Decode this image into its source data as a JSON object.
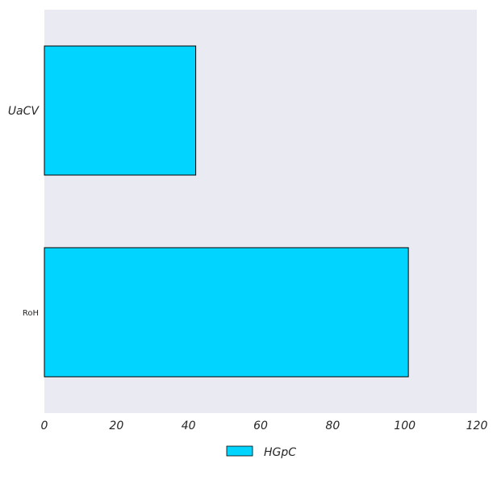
{
  "chart_data": {
    "type": "bar",
    "orientation": "horizontal",
    "categories": [
      "UaCV",
      "RoH"
    ],
    "series": [
      {
        "name": "HGpC",
        "values": [
          42,
          101
        ]
      }
    ],
    "xlim": [
      0,
      120
    ],
    "xticks": [
      "0",
      "20",
      "40",
      "60",
      "80",
      "100",
      "120"
    ],
    "grid": false,
    "legend_position": "bottom-center",
    "colors": {
      "bar_fill": "#00d4ff",
      "bar_edge": "#000000",
      "plot_background": "#eaeaf2"
    }
  }
}
